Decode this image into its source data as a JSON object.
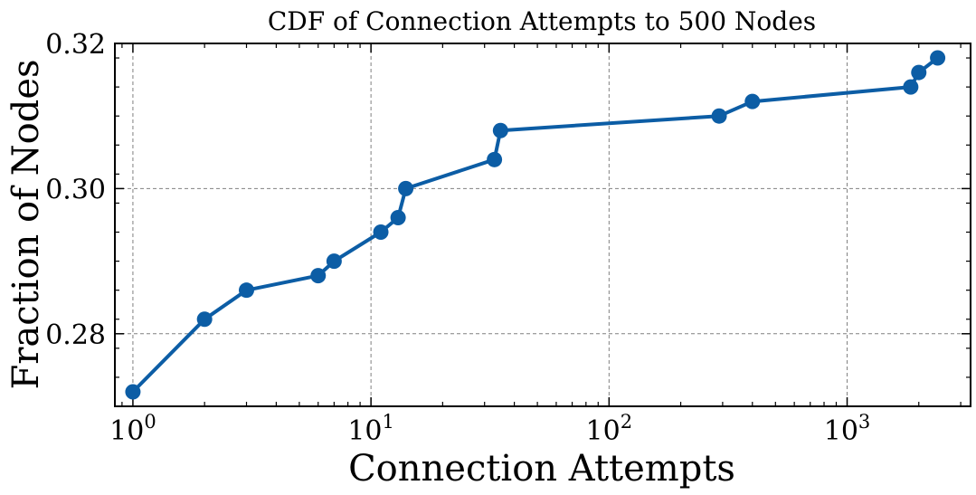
{
  "chart_data": {
    "type": "line",
    "title": "CDF of Connection Attempts to 500 Nodes",
    "xlabel": "Connection Attempts",
    "ylabel": "Fraction of Nodes",
    "xscale": "log",
    "xlim": [
      0.84,
      3300
    ],
    "ylim": [
      0.27,
      0.32
    ],
    "grid": true,
    "line_color": "#0C5DA5",
    "x_ticks": [
      {
        "value": 1,
        "base": "10",
        "exp": "0"
      },
      {
        "value": 10,
        "base": "10",
        "exp": "1"
      },
      {
        "value": 100,
        "base": "10",
        "exp": "2"
      },
      {
        "value": 1000,
        "base": "10",
        "exp": "3"
      }
    ],
    "y_ticks": [
      {
        "value": 0.28,
        "label": "0.28"
      },
      {
        "value": 0.3,
        "label": "0.30"
      },
      {
        "value": 0.32,
        "label": "0.32"
      }
    ],
    "series": [
      {
        "x": [
          1,
          2,
          3,
          6,
          7,
          11,
          13,
          14,
          33,
          35,
          290,
          400,
          1850,
          2000,
          2400
        ],
        "y": [
          0.272,
          0.282,
          0.286,
          0.288,
          0.29,
          0.294,
          0.296,
          0.3,
          0.304,
          0.308,
          0.31,
          0.312,
          0.314,
          0.316,
          0.318
        ]
      }
    ]
  }
}
